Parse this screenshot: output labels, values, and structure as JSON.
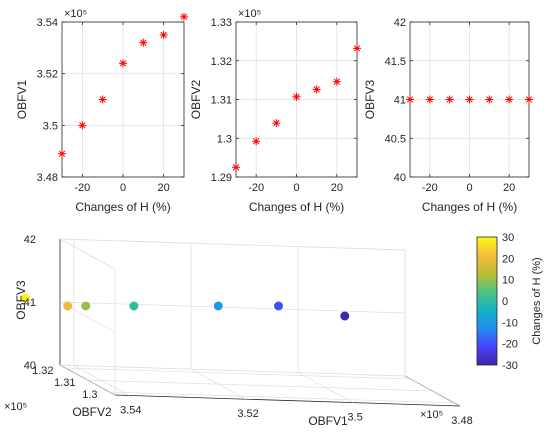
{
  "chart_data": [
    {
      "type": "scatter",
      "marker": "asterisk",
      "marker_color": "#ff0000",
      "xlabel": "Changes of  H (%)",
      "ylabel": "OBFV1",
      "exponent_label": "×10⁵",
      "x": [
        -30,
        -20,
        -10,
        0,
        10,
        20,
        30
      ],
      "y": [
        3.489,
        3.5,
        3.51,
        3.524,
        3.532,
        3.535,
        3.542
      ],
      "xlim": [
        -30,
        30
      ],
      "ylim": [
        3.48,
        3.54
      ],
      "xticks": [
        -20,
        0,
        20
      ],
      "yticks": [
        3.48,
        3.5,
        3.52,
        3.54
      ],
      "xtick_labels": [
        "-20",
        "0",
        "20"
      ],
      "ytick_labels": [
        "3.48",
        "3.5",
        "3.52",
        "3.54"
      ],
      "grid": true
    },
    {
      "type": "scatter",
      "marker": "asterisk",
      "marker_color": "#ff0000",
      "xlabel": "Changes of  H (%)",
      "ylabel": "OBFV2",
      "exponent_label": "×10⁵",
      "x": [
        -30,
        -20,
        -10,
        0,
        10,
        20,
        30
      ],
      "y": [
        1.2925,
        1.2992,
        1.3039,
        1.3107,
        1.3126,
        1.3146,
        1.3232
      ],
      "xlim": [
        -30,
        30
      ],
      "ylim": [
        1.29,
        1.33
      ],
      "xticks": [
        -20,
        0,
        20
      ],
      "yticks": [
        1.29,
        1.3,
        1.31,
        1.32,
        1.33
      ],
      "xtick_labels": [
        "-20",
        "0",
        "20"
      ],
      "ytick_labels": [
        "1.29",
        "1.3",
        "1.31",
        "1.32",
        "1.33"
      ],
      "grid": true
    },
    {
      "type": "scatter",
      "marker": "asterisk",
      "marker_color": "#ff0000",
      "xlabel": "Changes of  H (%)",
      "ylabel": "OBFV3",
      "x": [
        -30,
        -20,
        -10,
        0,
        10,
        20,
        30
      ],
      "y": [
        41,
        41,
        41,
        41,
        41,
        41,
        41
      ],
      "xlim": [
        -30,
        30
      ],
      "ylim": [
        40,
        42
      ],
      "xticks": [
        -20,
        0,
        20
      ],
      "yticks": [
        40,
        40.5,
        41,
        41.5,
        42
      ],
      "xtick_labels": [
        "-20",
        "0",
        "20"
      ],
      "ytick_labels": [
        "40",
        "40.5",
        "41",
        "41.5",
        "42"
      ],
      "grid": true
    },
    {
      "type": "scatter3d",
      "xlabel": "OBFV1",
      "ylabel": "OBFV2",
      "zlabel": "OBFV3",
      "x_exponent_label": "×10⁵",
      "y_exponent_label": "×10⁵",
      "points": [
        {
          "obfv1": 3.489,
          "obfv2": 1.2925,
          "obfv3": 41,
          "h": -30
        },
        {
          "obfv1": 3.5,
          "obfv2": 1.2992,
          "obfv3": 41,
          "h": -20
        },
        {
          "obfv1": 3.51,
          "obfv2": 1.3039,
          "obfv3": 41,
          "h": -10
        },
        {
          "obfv1": 3.524,
          "obfv2": 1.3107,
          "obfv3": 41,
          "h": 0
        },
        {
          "obfv1": 3.532,
          "obfv2": 1.3126,
          "obfv3": 41,
          "h": 10
        },
        {
          "obfv1": 3.535,
          "obfv2": 1.3146,
          "obfv3": 41,
          "h": 20
        },
        {
          "obfv1": 3.542,
          "obfv2": 1.3232,
          "obfv3": 41,
          "h": 30
        }
      ],
      "xticks": [
        "3.54",
        "3.52",
        "3.5",
        "3.48"
      ],
      "yticks": [
        "1.32",
        "1.31",
        "1.3"
      ],
      "zticks": [
        "40",
        "41",
        "42"
      ],
      "colorbar": {
        "label": "Changes of  H (%)",
        "min": -30,
        "max": 30,
        "ticks": [
          "30",
          "20",
          "10",
          "0",
          "-10",
          "-20",
          "-30"
        ],
        "colormap": "parula",
        "stops": [
          "#3e26a8",
          "#4743f8",
          "#1f8ef0",
          "#16b1c4",
          "#4cc482",
          "#bcbd32",
          "#f9bb3b",
          "#f9fb15"
        ]
      }
    }
  ]
}
